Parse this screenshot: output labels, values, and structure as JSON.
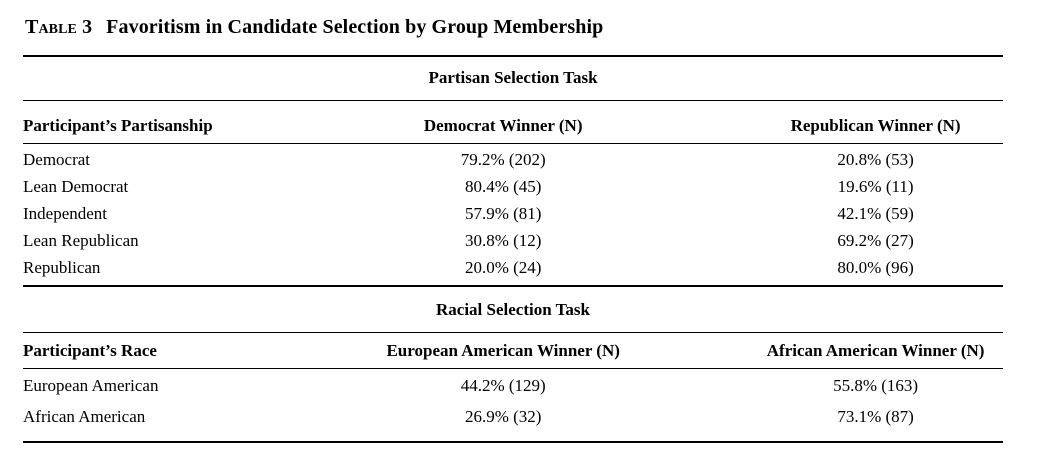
{
  "title": {
    "label": "Table 3",
    "text": "Favoritism in Candidate Selection by Group Membership"
  },
  "table": {
    "sections": [
      {
        "heading": "Partisan Selection Task",
        "columns": [
          "Participant’s Partisanship",
          "Democrat Winner (N)",
          "Republican Winner (N)"
        ],
        "rows": [
          [
            "Democrat",
            "79.2% (202)",
            "20.8% (53)"
          ],
          [
            "Lean Democrat",
            "80.4% (45)",
            "19.6% (11)"
          ],
          [
            "Independent",
            "57.9% (81)",
            "42.1% (59)"
          ],
          [
            "Lean Republican",
            "30.8% (12)",
            "69.2% (27)"
          ],
          [
            "Republican",
            "20.0% (24)",
            "80.0% (96)"
          ]
        ]
      },
      {
        "heading": "Racial Selection Task",
        "columns": [
          "Participant’s Race",
          "European American Winner (N)",
          "African American Winner (N)"
        ],
        "rows": [
          [
            "European American",
            "44.2% (129)",
            "55.8% (163)"
          ],
          [
            "African American",
            "26.9% (32)",
            "73.1% (87)"
          ]
        ]
      }
    ]
  },
  "colors": {
    "background": "#ffffff",
    "text": "#000000",
    "rule": "#000000"
  }
}
